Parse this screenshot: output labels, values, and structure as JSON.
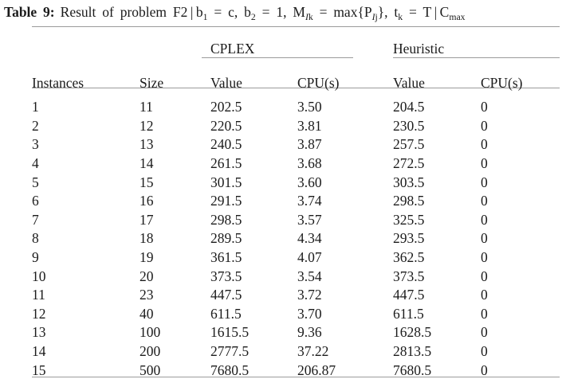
{
  "colors": {
    "background": "#ffffff",
    "text": "#1b1b1b",
    "rule": "#9b9b9b"
  },
  "caption": {
    "label": "Table 9:",
    "parts": [
      {
        "t": "Result of problem F2 | b",
        "s": "n"
      },
      {
        "t": "1",
        "s": "sub"
      },
      {
        "t": " = c, b",
        "s": "n"
      },
      {
        "t": "2",
        "s": "sub"
      },
      {
        "t": " = 1, M",
        "s": "n"
      },
      {
        "t": "I",
        "s": "subi"
      },
      {
        "t": "k",
        "s": "sub"
      },
      {
        "t": " = max{P",
        "s": "n"
      },
      {
        "t": "I",
        "s": "subi"
      },
      {
        "t": "j",
        "s": "sub"
      },
      {
        "t": "}, t",
        "s": "n"
      },
      {
        "t": "k",
        "s": "sub"
      },
      {
        "t": " = T | C",
        "s": "n"
      },
      {
        "t": "max",
        "s": "sub"
      }
    ]
  },
  "table": {
    "group_headers": [
      {
        "label": "CPLEX"
      },
      {
        "label": "Heuristic"
      }
    ],
    "column_headers": [
      "Instances",
      "Size",
      "Value",
      "CPU(s)",
      "Value",
      "CPU(s)"
    ],
    "rows": [
      [
        "1",
        "11",
        "202.5",
        "3.50",
        "204.5",
        "0"
      ],
      [
        "2",
        "12",
        "220.5",
        "3.81",
        "230.5",
        "0"
      ],
      [
        "3",
        "13",
        "240.5",
        "3.87",
        "257.5",
        "0"
      ],
      [
        "4",
        "14",
        "261.5",
        "3.68",
        "272.5",
        "0"
      ],
      [
        "5",
        "15",
        "301.5",
        "3.60",
        "303.5",
        "0"
      ],
      [
        "6",
        "16",
        "291.5",
        "3.74",
        "298.5",
        "0"
      ],
      [
        "7",
        "17",
        "298.5",
        "3.57",
        "325.5",
        "0"
      ],
      [
        "8",
        "18",
        "289.5",
        "4.34",
        "293.5",
        "0"
      ],
      [
        "9",
        "19",
        "361.5",
        "4.07",
        "362.5",
        "0"
      ],
      [
        "10",
        "20",
        "373.5",
        "3.54",
        "373.5",
        "0"
      ],
      [
        "11",
        "23",
        "447.5",
        "3.72",
        "447.5",
        "0"
      ],
      [
        "12",
        "40",
        "611.5",
        "3.70",
        "611.5",
        "0"
      ],
      [
        "13",
        "100",
        "1615.5",
        "9.36",
        "1628.5",
        "0"
      ],
      [
        "14",
        "200",
        "2777.5",
        "37.22",
        "2813.5",
        "0"
      ],
      [
        "15",
        "500",
        "7680.5",
        "206.87",
        "7680.5",
        "0"
      ]
    ]
  }
}
